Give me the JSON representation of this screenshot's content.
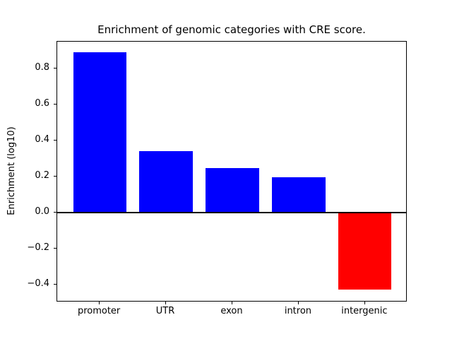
{
  "chart_data": {
    "type": "bar",
    "title": "Enrichment of genomic categories with CRE score.",
    "xlabel": "",
    "ylabel": "Enrichment (log10)",
    "categories": [
      "promoter",
      "UTR",
      "exon",
      "intron",
      "intergenic"
    ],
    "values": [
      0.89,
      0.34,
      0.245,
      0.196,
      -0.43
    ],
    "positive_color": "#0000ff",
    "negative_color": "#ff0000",
    "axis_color": "#000000",
    "background_color": "#ffffff",
    "ylim": [
      -0.5,
      0.95
    ],
    "xlim": [
      -0.64,
      4.64
    ],
    "yticks": [
      -0.4,
      -0.2,
      0.0,
      0.2,
      0.4,
      0.6,
      0.8
    ],
    "ytick_labels": [
      "−0.4",
      "−0.2",
      "0.0",
      "0.2",
      "0.4",
      "0.6",
      "0.8"
    ],
    "bar_width_fraction": 0.8,
    "zero_line": true,
    "grid": false,
    "legend_position": "none"
  }
}
